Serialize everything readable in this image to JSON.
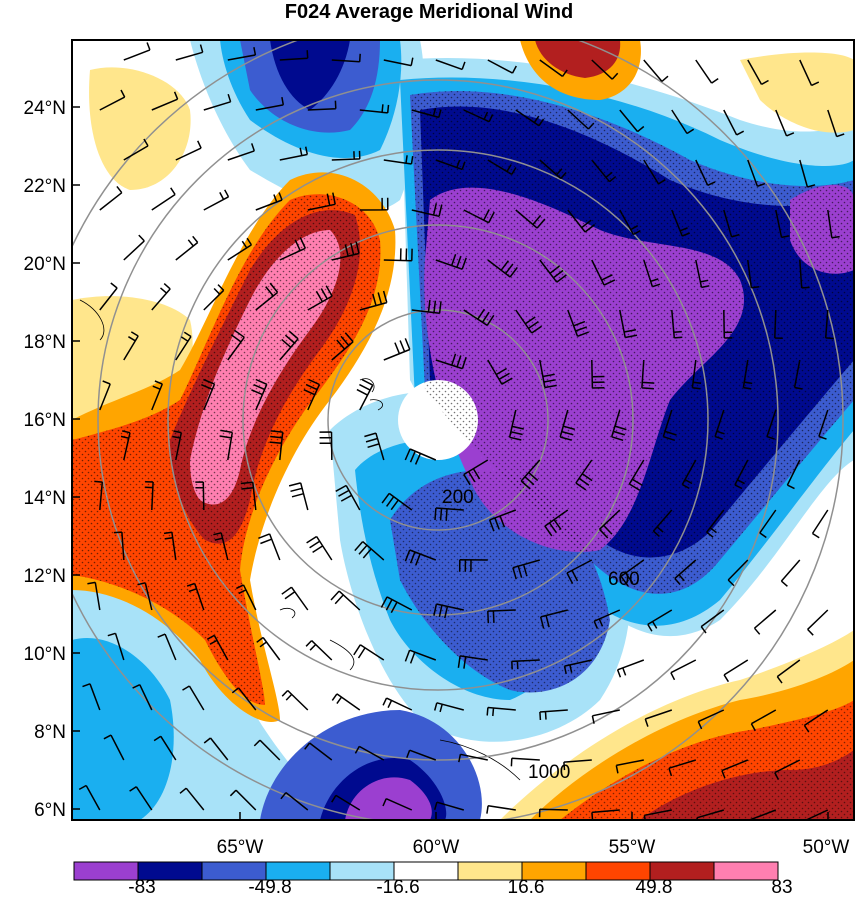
{
  "title": "F024 Average Meridional Wind",
  "lat_labels": [
    "24°N",
    "22°N",
    "20°N",
    "18°N",
    "16°N",
    "14°N",
    "12°N",
    "10°N",
    "8°N",
    "6°N"
  ],
  "lon_labels": [
    "65°W",
    "60°W",
    "55°W",
    "50°W"
  ],
  "colorbar": {
    "colors": [
      "#9b3fd0",
      "#000a8f",
      "#3c5cd0",
      "#1aaff0",
      "#a8e2f8",
      "#ffffff",
      "#ffe68c",
      "#ffa500",
      "#ff4500",
      "#b21f1f",
      "#ff7fb0"
    ],
    "labels": [
      "-83",
      "-49.8",
      "-16.6",
      "16.6",
      "49.8",
      "83"
    ]
  },
  "range_rings": [
    {
      "radius_label": "200"
    },
    {
      "radius_label": "600"
    },
    {
      "radius_label": "1000"
    }
  ],
  "colors": {
    "ring": "#909090",
    "frame": "#000000"
  }
}
